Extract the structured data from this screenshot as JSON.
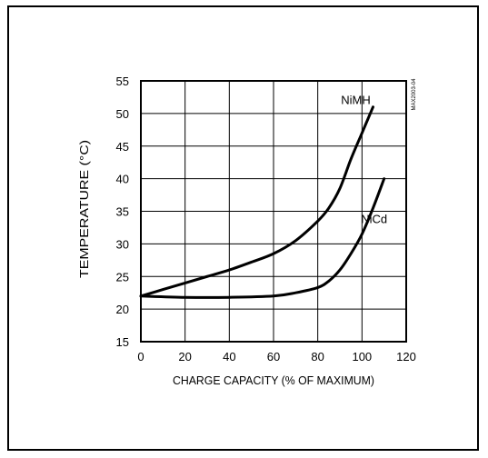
{
  "chart_data": {
    "type": "line",
    "xlabel": "CHARGE CAPACITY (% OF MAXIMUM)",
    "ylabel": "TEMPERATURE (°C)",
    "xlim": [
      0,
      120
    ],
    "ylim": [
      15,
      55
    ],
    "xticks": [
      0,
      20,
      40,
      60,
      80,
      100,
      120
    ],
    "yticks": [
      15,
      20,
      25,
      30,
      35,
      40,
      45,
      50,
      55
    ],
    "grid": true,
    "annotation": "MAX2003-04",
    "series": [
      {
        "name": "NiMH",
        "x": [
          0,
          10,
          20,
          30,
          40,
          50,
          60,
          70,
          80,
          85,
          90,
          95,
          100,
          105
        ],
        "y": [
          22,
          23,
          24,
          25,
          26,
          27.2,
          28.5,
          30.5,
          33.5,
          35.5,
          38.5,
          43,
          47,
          51
        ]
      },
      {
        "name": "NiCd",
        "x": [
          0,
          20,
          40,
          60,
          70,
          80,
          85,
          90,
          95,
          100,
          105,
          110
        ],
        "y": [
          22,
          21.8,
          21.8,
          22,
          22.5,
          23.3,
          24.3,
          26,
          28.5,
          31.5,
          35.5,
          40
        ]
      }
    ]
  }
}
